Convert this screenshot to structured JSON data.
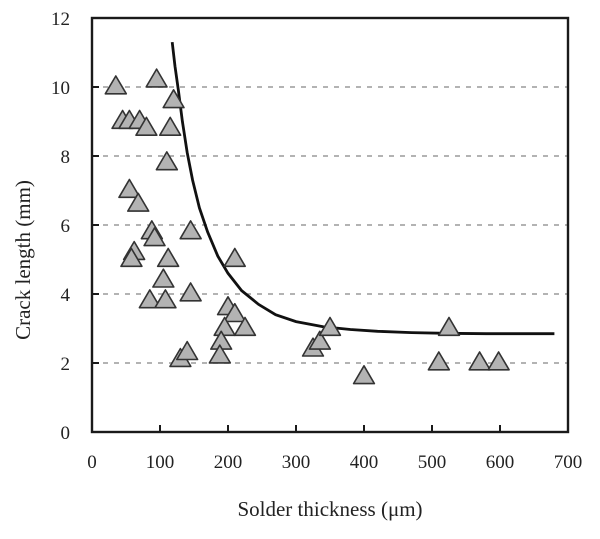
{
  "chart_data": {
    "type": "scatter",
    "title": "",
    "xlabel": "Solder thickness (μm)",
    "ylabel": "Crack length (mm)",
    "xlim": [
      0,
      700
    ],
    "ylim": [
      0,
      12
    ],
    "xticks": [
      0,
      100,
      200,
      300,
      400,
      500,
      600,
      700
    ],
    "yticks": [
      0,
      2,
      4,
      6,
      8,
      10,
      12
    ],
    "grid": "horizontal dashed at y = 2, 4, 6, 8, 10",
    "legend": "none",
    "series": [
      {
        "marker": "triangle",
        "points": [
          {
            "x": 35,
            "y": 10.0
          },
          {
            "x": 95,
            "y": 10.2
          },
          {
            "x": 120,
            "y": 9.6
          },
          {
            "x": 45,
            "y": 9.0
          },
          {
            "x": 55,
            "y": 9.0
          },
          {
            "x": 70,
            "y": 9.0
          },
          {
            "x": 80,
            "y": 8.8
          },
          {
            "x": 115,
            "y": 8.8
          },
          {
            "x": 110,
            "y": 7.8
          },
          {
            "x": 55,
            "y": 7.0
          },
          {
            "x": 68,
            "y": 6.6
          },
          {
            "x": 88,
            "y": 5.8
          },
          {
            "x": 92,
            "y": 5.6
          },
          {
            "x": 145,
            "y": 5.8
          },
          {
            "x": 62,
            "y": 5.2
          },
          {
            "x": 58,
            "y": 5.0
          },
          {
            "x": 112,
            "y": 5.0
          },
          {
            "x": 210,
            "y": 5.0
          },
          {
            "x": 105,
            "y": 4.4
          },
          {
            "x": 85,
            "y": 3.8
          },
          {
            "x": 108,
            "y": 3.8
          },
          {
            "x": 145,
            "y": 4.0
          },
          {
            "x": 200,
            "y": 3.6
          },
          {
            "x": 210,
            "y": 3.4
          },
          {
            "x": 225,
            "y": 3.0
          },
          {
            "x": 195,
            "y": 3.0
          },
          {
            "x": 190,
            "y": 2.6
          },
          {
            "x": 188,
            "y": 2.2
          },
          {
            "x": 130,
            "y": 2.1
          },
          {
            "x": 140,
            "y": 2.3
          },
          {
            "x": 325,
            "y": 2.4
          },
          {
            "x": 335,
            "y": 2.6
          },
          {
            "x": 350,
            "y": 3.0
          },
          {
            "x": 400,
            "y": 1.6
          },
          {
            "x": 510,
            "y": 2.0
          },
          {
            "x": 525,
            "y": 3.0
          },
          {
            "x": 570,
            "y": 2.0
          },
          {
            "x": 598,
            "y": 2.0
          }
        ]
      }
    ],
    "fit_curve": {
      "x": [
        118,
        122,
        127,
        133,
        140,
        148,
        158,
        170,
        185,
        200,
        220,
        245,
        270,
        300,
        340,
        380,
        420,
        470,
        520,
        580,
        640,
        680
      ],
      "y": [
        11.3,
        10.6,
        9.9,
        9.0,
        8.1,
        7.3,
        6.5,
        5.8,
        5.1,
        4.6,
        4.1,
        3.7,
        3.4,
        3.2,
        3.05,
        2.97,
        2.92,
        2.88,
        2.86,
        2.85,
        2.85,
        2.85
      ]
    }
  }
}
